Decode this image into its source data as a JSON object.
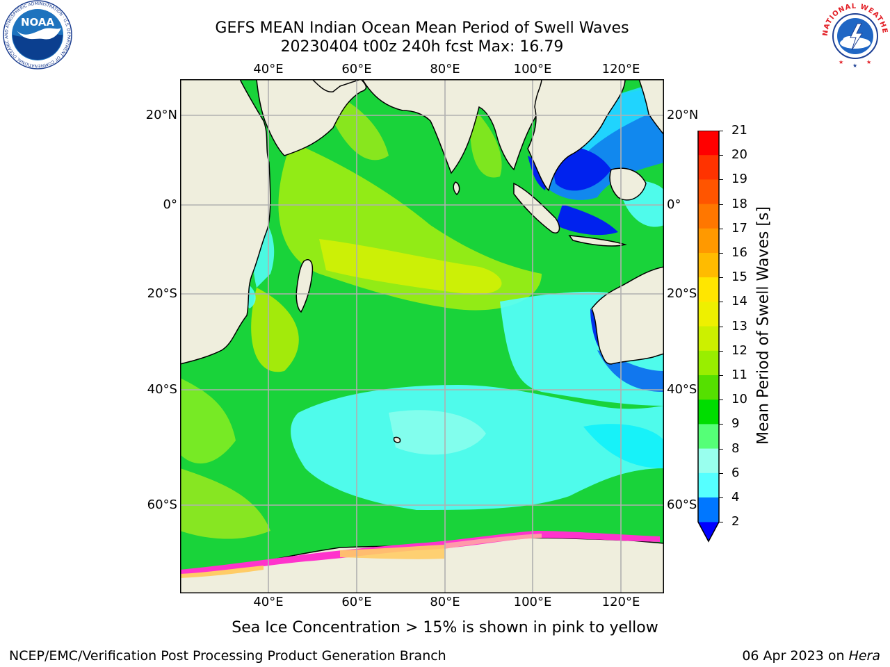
{
  "header": {
    "title_line1": "GEFS MEAN Indian Ocean Mean Period of Swell Waves",
    "title_line2": "20230404 t00z 240h fcst   Max: 16.79"
  },
  "logos": {
    "left_text": "NOAA",
    "left_ring_text": "NATIONAL OCEANIC AND ATMOSPHERIC ADMINISTRATION · U.S. DEPARTMENT OF COMMERCE",
    "right_ring_text": "NATIONAL WEATHER SERVICE"
  },
  "map": {
    "lon_ticks_top": [
      "40°E",
      "60°E",
      "80°E",
      "100°E",
      "120°E"
    ],
    "lon_ticks_bottom": [
      "40°E",
      "60°E",
      "80°E",
      "100°E",
      "120°E"
    ],
    "lat_ticks_left": [
      "20°N",
      "0°",
      "20°S",
      "40°S",
      "60°S"
    ],
    "lat_ticks_right": [
      "20°N",
      "0°",
      "20°S",
      "40°S",
      "60°S"
    ],
    "lon_values": [
      40,
      60,
      80,
      100,
      120
    ],
    "lat_values": [
      20,
      0,
      -20,
      -40,
      -60
    ],
    "colors": {
      "land": "#efeedd",
      "sea_ice": [
        "#ff33cc",
        "#ff99aa",
        "#ffcc66"
      ],
      "grid": "#b0b0b0"
    }
  },
  "colorbar": {
    "title": "Mean Period of Swell Waves [s]",
    "labels": [
      "21",
      "20",
      "19",
      "18",
      "17",
      "16",
      "15",
      "14",
      "13",
      "12",
      "11",
      "10",
      "9",
      "8",
      "6",
      "4",
      "2"
    ],
    "colors": [
      "#ff0000",
      "#ff3300",
      "#ff5500",
      "#ff7700",
      "#ff9900",
      "#ffbb00",
      "#ffe600",
      "#eef000",
      "#ccf000",
      "#99ee00",
      "#55e000",
      "#00dd00",
      "#55ff77",
      "#99ffee",
      "#55ffff",
      "#00eeff",
      "#0077ff"
    ],
    "extend_color": "#0000ff"
  },
  "note": "Sea Ice Concentration > 15% is shown in pink to yellow",
  "footer": {
    "left": "NCEP/EMC/Verification Post Processing Product Generation Branch",
    "right_date": "06 Apr 2023 on ",
    "right_host": "Hera"
  }
}
